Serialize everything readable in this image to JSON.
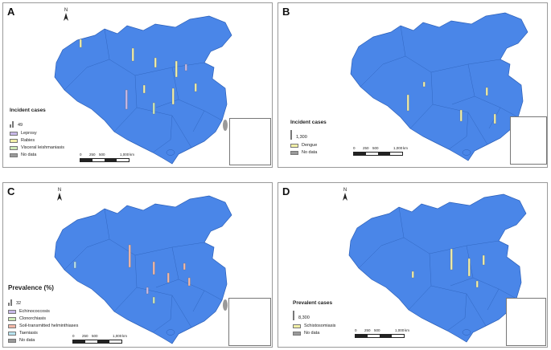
{
  "panels": [
    {
      "letter": "A",
      "legend_title": "Incident cases",
      "size_value": "49",
      "categories": [
        {
          "label": "Leprosy",
          "color": "#c8b8e8"
        },
        {
          "label": "Rabies",
          "color": "#f2f0a8"
        },
        {
          "label": "Visceral leishmaniasis",
          "color": "#cfeab8"
        },
        {
          "label": "No data",
          "color": "#9a9a9a"
        }
      ],
      "scale": {
        "ticks": [
          "0",
          "250",
          "500",
          "1,000"
        ],
        "unit": "km"
      }
    },
    {
      "letter": "B",
      "legend_title": "Incident cases",
      "size_value": "1,300",
      "categories": [
        {
          "label": "Dengue",
          "color": "#f2f0a8"
        },
        {
          "label": "No data",
          "color": "#9a9a9a"
        }
      ],
      "scale": {
        "ticks": [
          "0",
          "250",
          "500",
          "1,000"
        ],
        "unit": "km"
      }
    },
    {
      "letter": "C",
      "legend_title": "Prevalence (%)",
      "size_value": "32",
      "categories": [
        {
          "label": "Echinococcosis",
          "color": "#c8b8e8"
        },
        {
          "label": "Clonorchiasis",
          "color": "#cfeab8"
        },
        {
          "label": "Soil-transmitted helminthiases",
          "color": "#f4b8a8"
        },
        {
          "label": "Taeniasis",
          "color": "#b8e4f0"
        },
        {
          "label": "No data",
          "color": "#9a9a9a"
        }
      ],
      "scale": {
        "ticks": [
          "0",
          "250",
          "500",
          "1,000"
        ],
        "unit": "km"
      }
    },
    {
      "letter": "D",
      "legend_title": "Prevalent cases",
      "size_value": "8,300",
      "categories": [
        {
          "label": "Schistosomiasis",
          "color": "#f2f0a8"
        },
        {
          "label": "No data",
          "color": "#9a9a9a"
        }
      ],
      "scale": {
        "ticks": [
          "0",
          "250",
          "500",
          "1,000"
        ],
        "unit": "km"
      }
    }
  ],
  "north_label": "N",
  "map_colors": {
    "fill": "#4a86e8",
    "stroke": "#2b5fb8",
    "nodata": "#9a9a9a"
  }
}
